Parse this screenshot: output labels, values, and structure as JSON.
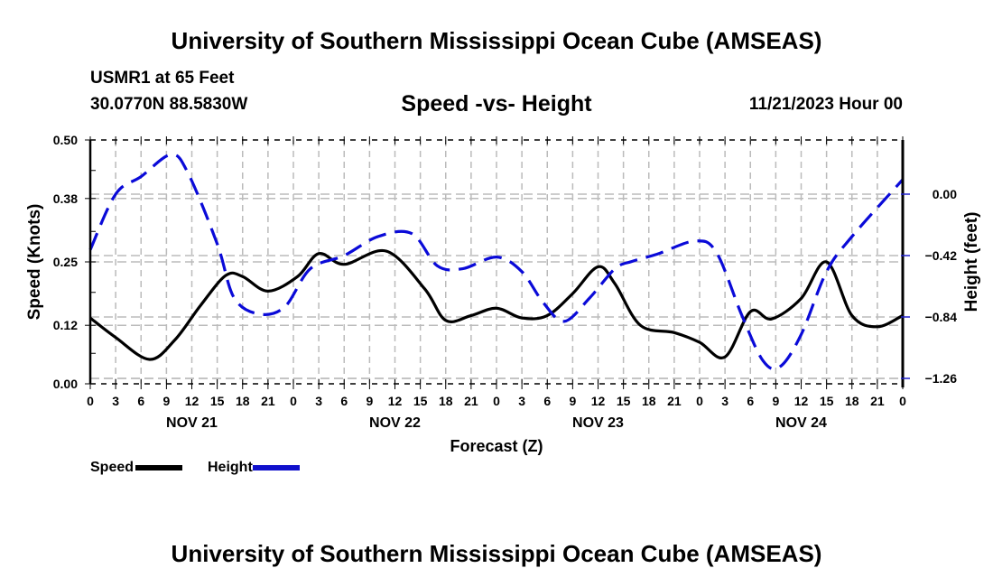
{
  "header": {
    "main_title": "University of Southern Mississippi Ocean Cube (AMSEAS)",
    "station": "USMR1 at 65 Feet",
    "coordinates": "30.0770N  88.5830W",
    "subtitle": "Speed -vs- Height",
    "datetime": "11/21/2023 Hour 00"
  },
  "footer": {
    "title": "University of Southern Mississippi Ocean Cube (AMSEAS)"
  },
  "legend": {
    "items": [
      {
        "label": "Speed",
        "color": "#000000",
        "style": "solid"
      },
      {
        "label": "Height",
        "color": "#0000dd",
        "style": "dashed"
      }
    ]
  },
  "chart_data": {
    "type": "line",
    "title": "Speed -vs- Height",
    "xlabel": "Forecast (Z)",
    "ylabel": "Speed (Knots)",
    "y2label": "Height (feet)",
    "x_unit": "forecast hours from 11/21/2023 00Z",
    "xlim": [
      0,
      96
    ],
    "ylim": [
      0,
      0.5
    ],
    "y2lim": [
      -1.26,
      0.38
    ],
    "x_ticks": [
      0,
      3,
      6,
      9,
      12,
      15,
      18,
      21,
      24,
      27,
      30,
      33,
      36,
      39,
      42,
      45,
      48,
      51,
      54,
      57,
      60,
      63,
      66,
      69,
      72,
      75,
      78,
      81,
      84,
      87,
      90,
      93,
      96
    ],
    "x_tick_labels": [
      "0",
      "3",
      "6",
      "9",
      "12",
      "15",
      "18",
      "21",
      "0",
      "3",
      "6",
      "9",
      "12",
      "15",
      "18",
      "21",
      "0",
      "3",
      "6",
      "9",
      "12",
      "15",
      "18",
      "21",
      "0",
      "3",
      "6",
      "9",
      "12",
      "15",
      "18",
      "21",
      "0"
    ],
    "day_labels": [
      {
        "label": "NOV 21",
        "hour": 12
      },
      {
        "label": "NOV 22",
        "hour": 36
      },
      {
        "label": "NOV 23",
        "hour": 60
      },
      {
        "label": "NOV 24",
        "hour": 84
      }
    ],
    "y_ticks": [
      0.0,
      0.12,
      0.25,
      0.38,
      0.5
    ],
    "y_tick_labels": [
      "0.00",
      "0.12",
      "0.25",
      "0.38",
      "0.50"
    ],
    "y2_ticks": [
      0.0,
      -0.42,
      -0.84,
      -1.26
    ],
    "y2_tick_labels": [
      "0.00",
      "−0.42",
      "−0.84",
      "−1.26"
    ],
    "grid": true,
    "legend_position": "bottom-left",
    "series": [
      {
        "name": "Speed",
        "axis": "left",
        "color": "#000000",
        "dash": "solid",
        "x": [
          0,
          3,
          7,
          10,
          13,
          16,
          18,
          21,
          24.5,
          27,
          30,
          35,
          39.5,
          42,
          45,
          48,
          51,
          54,
          57,
          60,
          62,
          65,
          69,
          72,
          75,
          78,
          80.5,
          84,
          87,
          90,
          93,
          96
        ],
        "y": [
          0.135,
          0.095,
          0.05,
          0.09,
          0.16,
          0.222,
          0.22,
          0.19,
          0.22,
          0.267,
          0.245,
          0.272,
          0.195,
          0.13,
          0.14,
          0.155,
          0.135,
          0.14,
          0.185,
          0.24,
          0.205,
          0.12,
          0.105,
          0.085,
          0.055,
          0.148,
          0.133,
          0.175,
          0.25,
          0.14,
          0.117,
          0.14
        ]
      },
      {
        "name": "Height",
        "axis": "right",
        "color": "#0000dd",
        "dash": "dashed",
        "x": [
          0,
          3,
          6,
          9.5,
          11.5,
          15,
          17,
          20,
          23,
          26,
          30,
          34,
          38,
          41,
          44,
          48,
          51,
          53.5,
          56,
          59,
          62,
          64,
          67,
          71.5,
          74,
          77,
          79.5,
          81.5,
          84,
          87,
          90,
          96
        ],
        "y": [
          -0.38,
          0.0,
          0.12,
          0.27,
          0.15,
          -0.34,
          -0.71,
          -0.82,
          -0.77,
          -0.51,
          -0.42,
          -0.29,
          -0.27,
          -0.49,
          -0.51,
          -0.43,
          -0.53,
          -0.74,
          -0.87,
          -0.71,
          -0.51,
          -0.46,
          -0.41,
          -0.32,
          -0.4,
          -0.83,
          -1.14,
          -1.18,
          -0.96,
          -0.53,
          -0.29,
          0.1
        ]
      }
    ]
  }
}
